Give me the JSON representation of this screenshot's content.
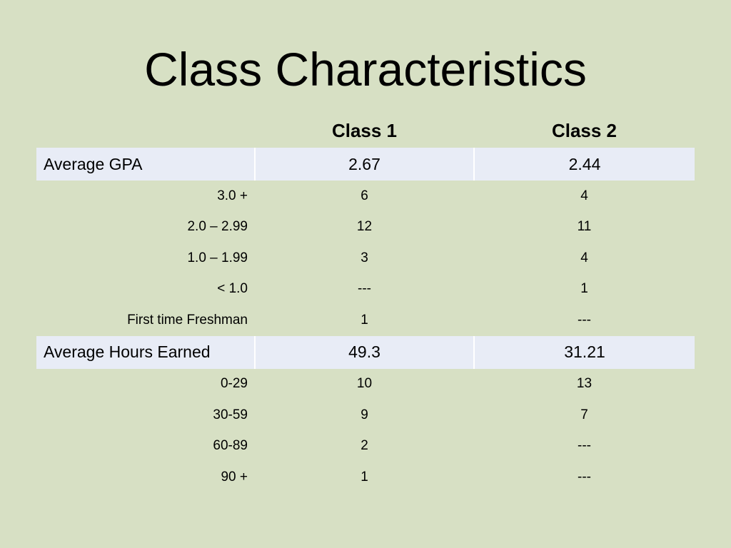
{
  "title": "Class Characteristics",
  "columns": [
    "Class 1",
    "Class 2"
  ],
  "sections": [
    {
      "label": "Average GPA",
      "class1": "2.67",
      "class2": "2.44",
      "rows": [
        {
          "label": "3.0 +",
          "class1": "6",
          "class2": "4"
        },
        {
          "label": "2.0 – 2.99",
          "class1": "12",
          "class2": "11"
        },
        {
          "label": "1.0 – 1.99",
          "class1": "3",
          "class2": "4"
        },
        {
          "label": "< 1.0",
          "class1": "---",
          "class2": "1"
        },
        {
          "label": "First time Freshman",
          "class1": "1",
          "class2": "---"
        }
      ]
    },
    {
      "label": "Average Hours Earned",
      "class1": "49.3",
      "class2": "31.21",
      "rows": [
        {
          "label": "0-29",
          "class1": "10",
          "class2": "13"
        },
        {
          "label": "30-59",
          "class1": "9",
          "class2": "7"
        },
        {
          "label": "60-89",
          "class1": "2",
          "class2": "---"
        },
        {
          "label": "90 +",
          "class1": "1",
          "class2": "---"
        }
      ]
    }
  ],
  "colors": {
    "background": "#d7e0c4",
    "section_row": "#e8ecf6",
    "text": "#000000"
  }
}
